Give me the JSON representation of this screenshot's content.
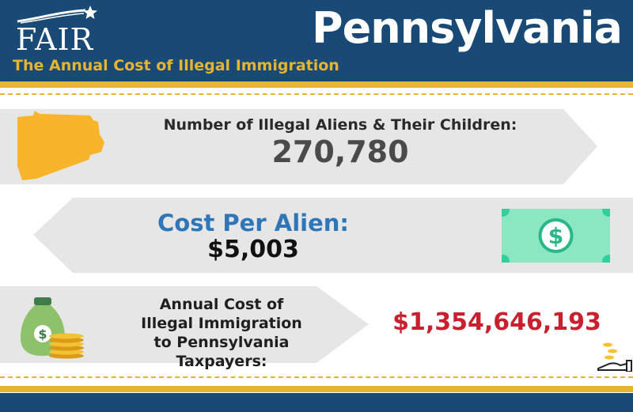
{
  "logo": {
    "text": "FAIR",
    "icon": "star-swoosh-icon"
  },
  "header": {
    "subtitle": "The Annual Cost of Illegal Immigration",
    "state": "Pennsylvania"
  },
  "stats": [
    {
      "label": "Number of Illegal Aliens & Their Children:",
      "value": "270,780",
      "icon": "pennsylvania-map-icon"
    },
    {
      "label": "Cost Per Alien:",
      "value": "$5,003",
      "icon": "dollar-bill-icon"
    },
    {
      "label_lines": [
        "Annual Cost of",
        "Illegal Immigration",
        "to Pennsylvania Taxpayers:"
      ],
      "value": "$1,354,646,193",
      "icons": [
        "money-bag-icon",
        "coins-icon",
        "hand-coins-icon"
      ]
    }
  ],
  "colors": {
    "navy": "#184a75",
    "gold": "#e5b431",
    "arrow_gray": "#e6e6e6",
    "blue_text": "#2f76b9",
    "red_text": "#c8202e",
    "bill_green": "#2fd09b",
    "bag_green": "#8dc26b"
  }
}
